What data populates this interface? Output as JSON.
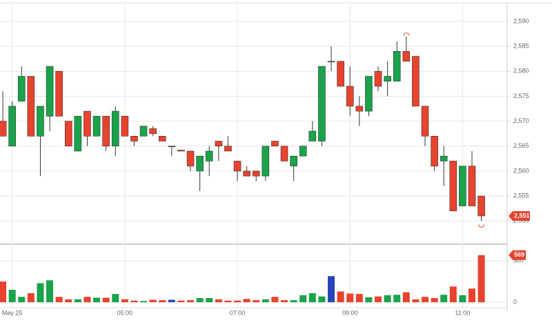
{
  "chart_data": {
    "type": "candlestick",
    "open": [
      2570,
      2565,
      2574,
      2579,
      2567,
      2571,
      2580,
      2570,
      2564,
      2572,
      2567,
      2571,
      2565,
      2571,
      2567,
      2567,
      2568.5,
      2567,
      2565,
      2564.2,
      2564,
      2560,
      2562,
      2566,
      2565,
      2562,
      2560,
      2560,
      2559,
      2566,
      2565,
      2561,
      2563,
      2566,
      2566,
      2582,
      2582,
      2577,
      2573,
      2572,
      2580,
      2578,
      2578,
      2584,
      2583,
      2573,
      2567,
      2562,
      2562,
      2553,
      2561,
      2555
    ],
    "high": [
      2576,
      2574,
      2581,
      2579,
      2573,
      2581,
      2580,
      2570,
      2571,
      2572,
      2571,
      2571,
      2573,
      2571,
      2567,
      2569,
      2569,
      2567,
      2565,
      2564.2,
      2564,
      2563,
      2565,
      2566,
      2567,
      2562,
      2561,
      2560,
      2565,
      2566,
      2565,
      2563,
      2565,
      2570,
      2581,
      2585,
      2582,
      2581,
      2575,
      2579,
      2581,
      2582,
      2586,
      2587,
      2583,
      2573,
      2567,
      2565,
      2562,
      2561,
      2564,
      2555
    ],
    "low": [
      2567,
      2565,
      2574,
      2567,
      2559,
      2568,
      2571,
      2565,
      2564,
      2565,
      2567,
      2564,
      2563,
      2567,
      2565,
      2567,
      2567,
      2566,
      2563,
      2564,
      2560,
      2556,
      2559,
      2562,
      2564,
      2558,
      2559,
      2558,
      2558,
      2565,
      2562,
      2558,
      2563,
      2566,
      2565,
      2580,
      2577,
      2571,
      2569,
      2571,
      2576,
      2575,
      2578,
      2582,
      2573,
      2565,
      2560,
      2557,
      2552,
      2553,
      2553,
      2550
    ],
    "close": [
      2567,
      2573,
      2579,
      2567,
      2573,
      2581,
      2571,
      2565,
      2571,
      2567,
      2571,
      2565,
      2572,
      2567,
      2566,
      2569,
      2567.5,
      2566,
      2565,
      2564,
      2561,
      2563,
      2564,
      2565,
      2564,
      2560,
      2559,
      2559,
      2565,
      2565,
      2562,
      2563,
      2565,
      2568,
      2581,
      2582,
      2577,
      2573,
      2572,
      2579,
      2577,
      2579,
      2584,
      2582,
      2573,
      2567,
      2561,
      2563,
      2552,
      2561,
      2553,
      2551
    ],
    "up_color": "#1aa34a",
    "down_color": "#e8432e",
    "flat_color": "#2446b8",
    "ylim": [
      2545.6,
      2593.6
    ],
    "yticks": [
      {
        "value": 2550,
        "label": "2,550"
      },
      {
        "value": 2555,
        "label": "2,555"
      },
      {
        "value": 2560,
        "label": "2,560"
      },
      {
        "value": 2565,
        "label": "2,565"
      },
      {
        "value": 2570,
        "label": "2,570"
      },
      {
        "value": 2575,
        "label": "2,575"
      },
      {
        "value": 2580,
        "label": "2,580"
      },
      {
        "value": 2585,
        "label": "2,585"
      },
      {
        "value": 2590,
        "label": "2,590"
      }
    ],
    "xlim": [
      -0.3,
      53.75
    ],
    "xticks": [
      {
        "value": 1,
        "label": "May 25"
      },
      {
        "value": 13,
        "label": "05:00"
      },
      {
        "value": 25,
        "label": "07:00"
      },
      {
        "value": 37,
        "label": "09:00"
      },
      {
        "value": 49,
        "label": "11:00"
      }
    ],
    "last_price_label": "2,551",
    "volume": {
      "values": [
        250,
        150,
        65,
        110,
        230,
        265,
        65,
        35,
        35,
        65,
        55,
        55,
        100,
        35,
        20,
        15,
        30,
        25,
        30,
        20,
        25,
        50,
        50,
        35,
        20,
        20,
        40,
        25,
        35,
        65,
        25,
        25,
        85,
        110,
        70,
        315,
        130,
        105,
        100,
        60,
        70,
        85,
        90,
        120,
        35,
        65,
        50,
        90,
        190,
        85,
        165,
        569
      ],
      "ylim": [
        0,
        692
      ],
      "yticks": [
        0,
        500
      ]
    },
    "grid": true
  }
}
